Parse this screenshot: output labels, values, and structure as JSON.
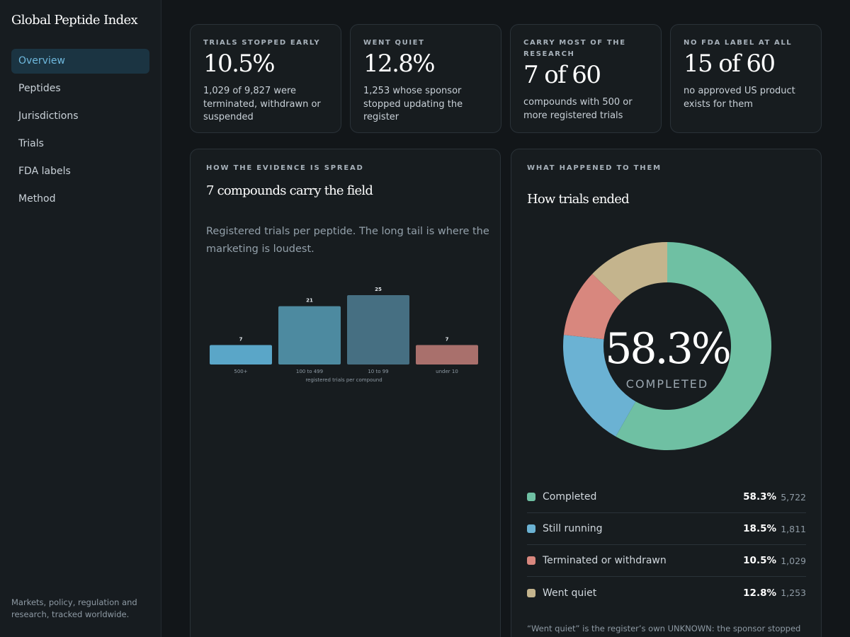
{
  "sidebar": {
    "brand": "Global Peptide Index",
    "nav": [
      {
        "label": "Overview",
        "active": true
      },
      {
        "label": "Peptides",
        "active": false
      },
      {
        "label": "Jurisdictions",
        "active": false
      },
      {
        "label": "Trials",
        "active": false
      },
      {
        "label": "FDA labels",
        "active": false
      },
      {
        "label": "Method",
        "active": false
      }
    ],
    "footer": "Markets, policy, regulation and research, tracked worldwide."
  },
  "stats": [
    {
      "kicker": "TRIALS STOPPED EARLY",
      "value": "10.5%",
      "body": "1,029 of 9,827 were terminated, withdrawn or suspended"
    },
    {
      "kicker": "WENT QUIET",
      "value": "12.8%",
      "body": "1,253 whose sponsor stopped updating the register"
    },
    {
      "kicker": "CARRY MOST OF THE RESEARCH",
      "value": "7 of 60",
      "body": "compounds with 500 or more registered trials"
    },
    {
      "kicker": "NO FDA LABEL AT ALL",
      "value": "15 of 60",
      "body": "no approved US product exists for them"
    }
  ],
  "spread_panel": {
    "kicker": "HOW THE EVIDENCE IS SPREAD",
    "title": "7 compounds carry the field",
    "description": "Registered trials per peptide. The long tail is where the marketing is loudest."
  },
  "outcome_panel": {
    "kicker": "WHAT HAPPENED TO THEM",
    "title": "How trials ended",
    "center_value": "58.3%",
    "center_label": "COMPLETED",
    "legend": [
      {
        "label": "Completed",
        "pct": "58.3%",
        "count": "5,722",
        "color": "#6fc0a3"
      },
      {
        "label": "Still running",
        "pct": "18.5%",
        "count": "1,811",
        "color": "#6bb2d3"
      },
      {
        "label": "Terminated or withdrawn",
        "pct": "10.5%",
        "count": "1,029",
        "color": "#d8877e"
      },
      {
        "label": "Went quiet",
        "pct": "12.8%",
        "count": "1,253",
        "color": "#c4b48d"
      }
    ],
    "footnote": "“Went quiet” is the register’s own UNKNOWN: the sponsor stopped"
  },
  "chart_data": [
    {
      "type": "bar",
      "categories": [
        "500+",
        "100 to 499",
        "10 to 99",
        "under 10"
      ],
      "values": [
        7,
        21,
        25,
        7
      ],
      "colors": [
        "#5aa6c8",
        "#4d8aa0",
        "#466f82",
        "#a9706c"
      ],
      "title": "",
      "xlabel": "registered trials per compound",
      "ylabel": "",
      "ylim": [
        0,
        25
      ],
      "grid": false
    },
    {
      "type": "pie",
      "categories": [
        "Completed",
        "Still running",
        "Terminated or withdrawn",
        "Went quiet"
      ],
      "values": [
        58.3,
        18.5,
        10.5,
        12.8
      ],
      "colors": [
        "#6fc0a3",
        "#6bb2d3",
        "#d8877e",
        "#c4b48d"
      ],
      "donut": true,
      "title": ""
    }
  ]
}
